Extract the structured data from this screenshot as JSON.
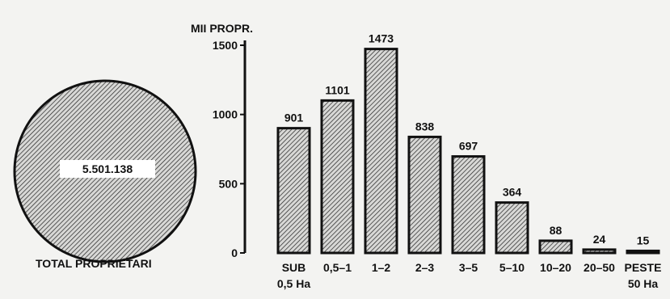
{
  "total": {
    "value": "5.501.138",
    "label": "TOTAL PROPRIETARI"
  },
  "colors": {
    "ink": "#111111",
    "background": "#f3f3f1",
    "bar_fill": "#cfcfcf"
  },
  "chart_data": {
    "type": "bar",
    "ylabel": "MII PROPR.",
    "xlabel": "",
    "title": "",
    "ylim": [
      0,
      1500
    ],
    "yticks": [
      0,
      500,
      1000,
      1500
    ],
    "grid": false,
    "categories": [
      [
        "SUB",
        "0,5 Ha"
      ],
      [
        "0,5–1"
      ],
      [
        "1–2"
      ],
      [
        "2–3"
      ],
      [
        "3–5"
      ],
      [
        "5–10"
      ],
      [
        "10–20"
      ],
      [
        "20–50"
      ],
      [
        "PESTE",
        "50 Ha"
      ]
    ],
    "values": [
      901,
      1101,
      1473,
      838,
      697,
      364,
      88,
      24,
      15
    ]
  }
}
